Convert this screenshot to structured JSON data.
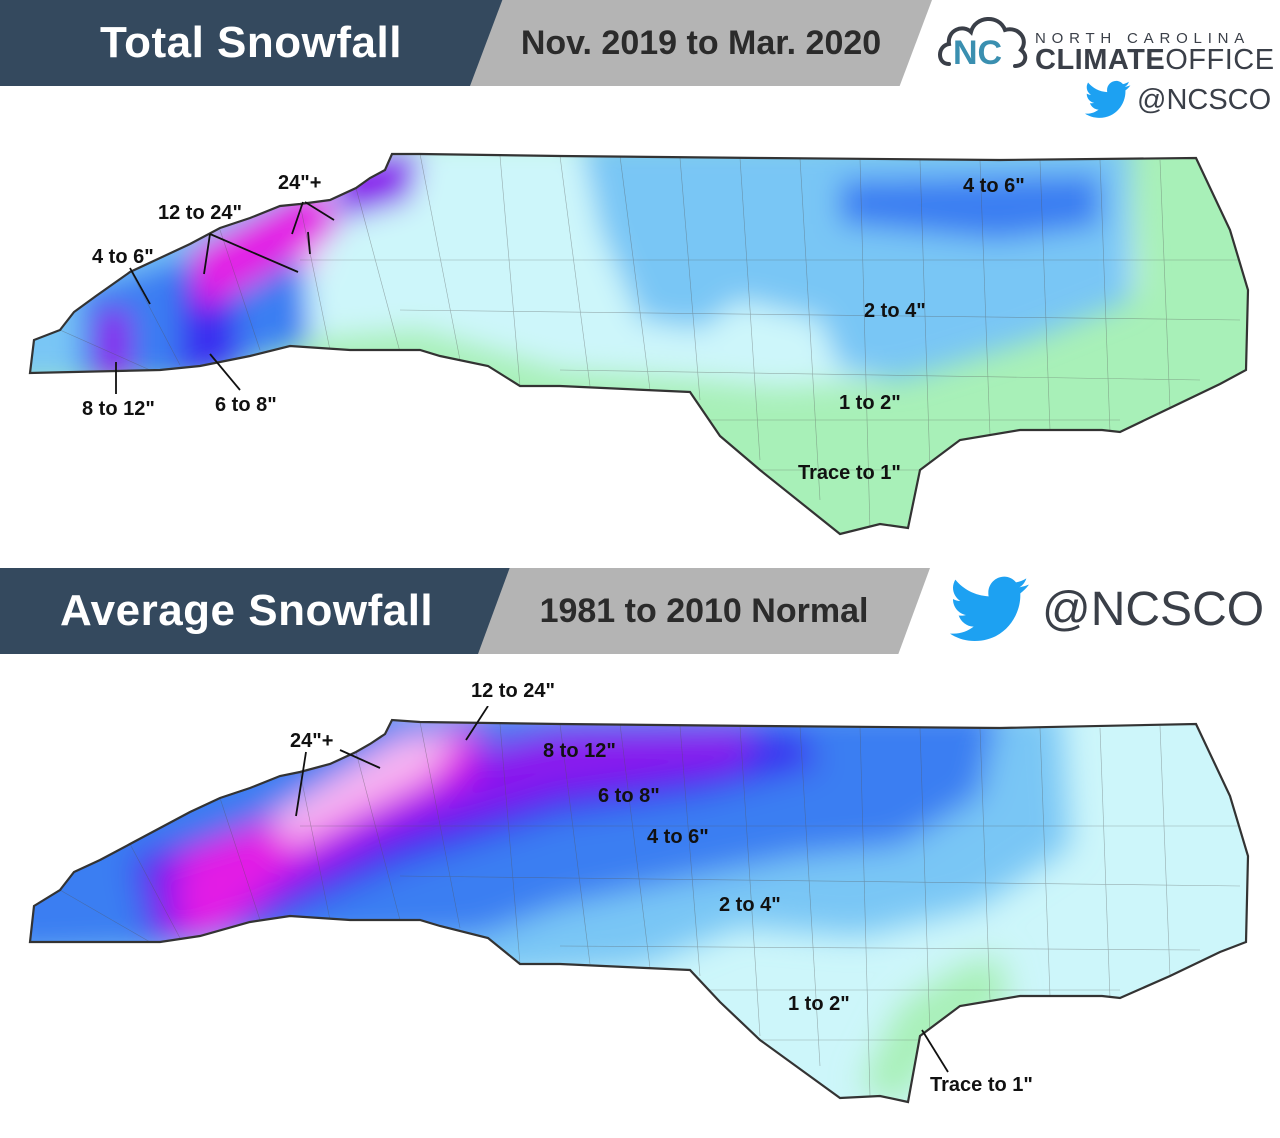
{
  "top_panel": {
    "title": "Total Snowfall",
    "period": "Nov. 2019 to Mar. 2020",
    "labels": {
      "l24": "24\"+",
      "l12_24": "12 to 24\"",
      "l4_6_west": "4 to 6\"",
      "l8_12": "8 to 12\"",
      "l6_8": "6 to 8\"",
      "l4_6_ne": "4 to 6\"",
      "l2_4": "2 to 4\"",
      "l1_2": "1 to 2\"",
      "trace": "Trace to 1\""
    }
  },
  "bottom_panel": {
    "title": "Average Snowfall",
    "period": "1981 to 2010 Normal",
    "labels": {
      "l12_24": "12 to 24\"",
      "l24": "24\"+",
      "l8_12": "8 to 12\"",
      "l6_8": "6 to 8\"",
      "l4_6": "4 to 6\"",
      "l2_4": "2 to 4\"",
      "l1_2": "1 to 2\"",
      "trace": "Trace to 1\""
    }
  },
  "logo": {
    "line1": "NORTH CAROLINA",
    "line2_bold": "CLIMATE",
    "line2_light": "OFFICE",
    "mark": "NC"
  },
  "social": {
    "handle": "@NCSCO",
    "icon": "twitter-bird-icon"
  },
  "colors": {
    "banner_dark": "#34495e",
    "banner_gray": "#b4b4b4",
    "trace": "#a8f0b8",
    "one_to_two": "#cdf6fa",
    "two_to_four": "#79c6f5",
    "four_to_six": "#3a7ef2",
    "six_to_eight": "#3a2ef0",
    "eight_to_twelve": "#8a14ee",
    "twelve_to_24": "#e31ee5",
    "over_24": "#f8b6f2",
    "twitter_blue": "#1da1f2"
  }
}
